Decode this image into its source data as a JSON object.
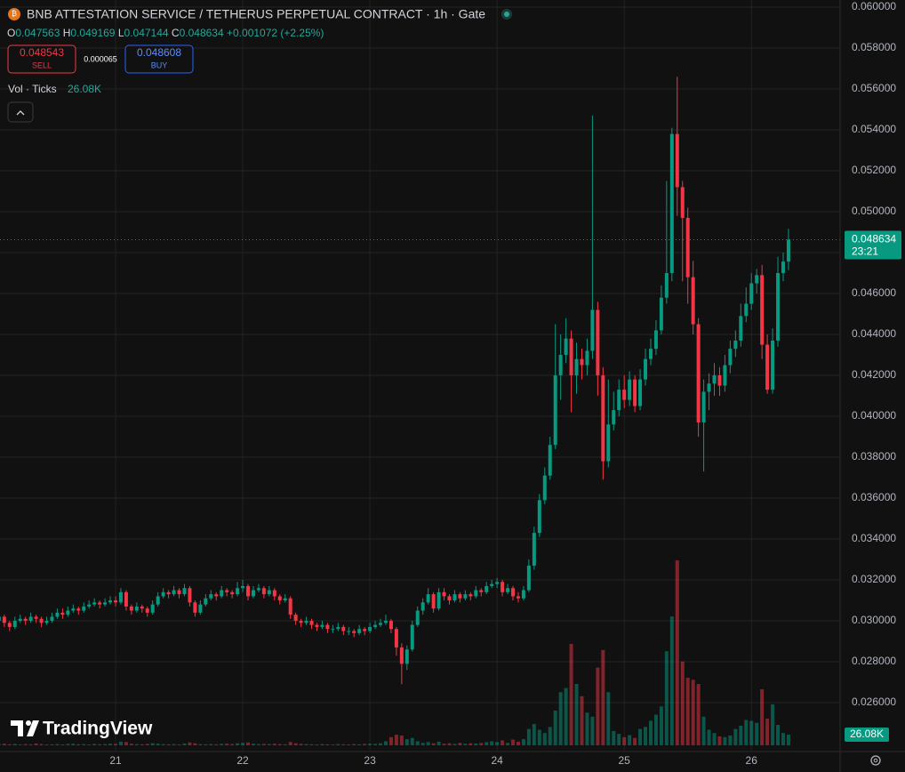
{
  "header": {
    "symbol": "BNB ATTESTATION SERVICE / TETHERUS PERPETUAL CONTRACT · 1h · Gate",
    "ohlc_labels": [
      "O",
      "H",
      "L",
      "C"
    ],
    "change": "+0.001072",
    "change_percent": "(+2.25%)",
    "sell_price": "0.048543",
    "sell_label": "SELL",
    "spread": "0.000065",
    "buy_price": "0.048608",
    "buy_label": "BUY",
    "volume_indicator": "Vol · Ticks",
    "countdown": "23:21",
    "logo": "TradingView"
  },
  "chart_data": {
    "type": "candlestick",
    "up_color": "#089981",
    "down_color": "#f23645",
    "grid": true,
    "ylim": [
      0.02361,
      0.06035
    ],
    "yticks": [
      {
        "value": 0.026,
        "label": "0.026000"
      },
      {
        "value": 0.028,
        "label": "0.028000"
      },
      {
        "value": 0.03,
        "label": "0.030000"
      },
      {
        "value": 0.032,
        "label": "0.032000"
      },
      {
        "value": 0.034,
        "label": "0.034000"
      },
      {
        "value": 0.036,
        "label": "0.036000"
      },
      {
        "value": 0.038,
        "label": "0.038000"
      },
      {
        "value": 0.04,
        "label": "0.040000"
      },
      {
        "value": 0.042,
        "label": "0.042000"
      },
      {
        "value": 0.044,
        "label": "0.044000"
      },
      {
        "value": 0.046,
        "label": "0.046000"
      },
      {
        "value": 0.048,
        "label": "0.048000"
      },
      {
        "value": 0.05,
        "label": "0.050000"
      },
      {
        "value": 0.052,
        "label": "0.052000"
      },
      {
        "value": 0.054,
        "label": "0.054000"
      },
      {
        "value": 0.056,
        "label": "0.056000"
      },
      {
        "value": 0.058,
        "label": "0.058000"
      },
      {
        "value": 0.06,
        "label": "0.060000"
      }
    ],
    "xlim": [
      0.19,
      158.74
    ],
    "xticks": [
      {
        "value": 22,
        "label": "21"
      },
      {
        "value": 46,
        "label": "22"
      },
      {
        "value": 70,
        "label": "23"
      },
      {
        "value": 94,
        "label": "24"
      },
      {
        "value": 118,
        "label": "25"
      },
      {
        "value": 142,
        "label": "26"
      }
    ],
    "volume_ylim": [
      0,
      1800000
    ],
    "last_volume_label": "26.08K",
    "open": [
      0.03,
      0.0302,
      0.0299,
      0.0297,
      0.03,
      0.0301,
      0.03,
      0.0302,
      0.0301,
      0.0299,
      0.03,
      0.0302,
      0.0304,
      0.0303,
      0.0305,
      0.0306,
      0.0305,
      0.0307,
      0.0308,
      0.0309,
      0.0308,
      0.0309,
      0.031,
      0.0309,
      0.0314,
      0.0307,
      0.0305,
      0.0307,
      0.0306,
      0.0304,
      0.0308,
      0.0312,
      0.0314,
      0.0313,
      0.0315,
      0.0313,
      0.0316,
      0.0309,
      0.0304,
      0.0308,
      0.0311,
      0.0313,
      0.0312,
      0.0315,
      0.0314,
      0.0313,
      0.0316,
      0.0317,
      0.0312,
      0.0315,
      0.0316,
      0.0313,
      0.0315,
      0.0312,
      0.031,
      0.0311,
      0.0303,
      0.03,
      0.0299,
      0.03,
      0.0298,
      0.0297,
      0.0298,
      0.0296,
      0.0296,
      0.0297,
      0.0295,
      0.0295,
      0.0294,
      0.0296,
      0.0295,
      0.0297,
      0.0298,
      0.0299,
      0.03,
      0.0296,
      0.0287,
      0.0279,
      0.0286,
      0.0298,
      0.0305,
      0.0309,
      0.0313,
      0.0306,
      0.0314,
      0.0312,
      0.031,
      0.0313,
      0.0311,
      0.0313,
      0.0312,
      0.0315,
      0.0314,
      0.0317,
      0.0318,
      0.0319,
      0.0314,
      0.0316,
      0.0312,
      0.0311,
      0.0315,
      0.0327,
      0.0343,
      0.0359,
      0.0371,
      0.0386,
      0.042,
      0.043,
      0.0438,
      0.042,
      0.0428,
      0.0425,
      0.0432,
      0.0452,
      0.042,
      0.0378,
      0.0396,
      0.0403,
      0.0413,
      0.0408,
      0.0418,
      0.0405,
      0.0418,
      0.0428,
      0.0433,
      0.0442,
      0.0458,
      0.047,
      0.0538,
      0.0512,
      0.0497,
      0.0468,
      0.0445,
      0.0397,
      0.0412,
      0.0416,
      0.042,
      0.0415,
      0.0425,
      0.0433,
      0.0437,
      0.0449,
      0.0455,
      0.0465,
      0.0469,
      0.0435,
      0.0413,
      0.0437,
      0.047,
      0.047563
    ],
    "high": [
      0.0305,
      0.0303,
      0.03,
      0.0302,
      0.0303,
      0.0302,
      0.0304,
      0.0303,
      0.0302,
      0.0302,
      0.0304,
      0.0306,
      0.0306,
      0.0307,
      0.0308,
      0.0307,
      0.0309,
      0.031,
      0.0311,
      0.031,
      0.0311,
      0.0312,
      0.0312,
      0.0316,
      0.0315,
      0.0308,
      0.0309,
      0.0308,
      0.0307,
      0.031,
      0.0314,
      0.0316,
      0.0315,
      0.0317,
      0.0316,
      0.0318,
      0.0317,
      0.031,
      0.031,
      0.0313,
      0.0315,
      0.0314,
      0.0317,
      0.0316,
      0.0315,
      0.0319,
      0.032,
      0.0318,
      0.0317,
      0.0318,
      0.0317,
      0.0317,
      0.0316,
      0.0313,
      0.0313,
      0.0312,
      0.0304,
      0.0301,
      0.0302,
      0.0301,
      0.0299,
      0.03,
      0.0299,
      0.0298,
      0.0299,
      0.0298,
      0.0297,
      0.0296,
      0.0298,
      0.0297,
      0.0299,
      0.03,
      0.0301,
      0.0303,
      0.0301,
      0.0297,
      0.0289,
      0.0288,
      0.03,
      0.0307,
      0.0311,
      0.0316,
      0.0314,
      0.0316,
      0.0316,
      0.0313,
      0.0315,
      0.0314,
      0.0315,
      0.0314,
      0.0317,
      0.0316,
      0.0319,
      0.032,
      0.0321,
      0.032,
      0.0318,
      0.0317,
      0.0314,
      0.0317,
      0.033,
      0.0346,
      0.0362,
      0.0375,
      0.039,
      0.0445,
      0.044,
      0.0448,
      0.0442,
      0.0436,
      0.0433,
      0.0438,
      0.0547,
      0.0456,
      0.0424,
      0.0418,
      0.0412,
      0.0418,
      0.042,
      0.0422,
      0.042,
      0.0423,
      0.0433,
      0.0438,
      0.0447,
      0.0464,
      0.0515,
      0.0541,
      0.0566,
      0.0515,
      0.0502,
      0.0476,
      0.0448,
      0.0418,
      0.0421,
      0.0426,
      0.0424,
      0.043,
      0.0437,
      0.0442,
      0.0455,
      0.0463,
      0.047,
      0.0472,
      0.0474,
      0.044,
      0.0443,
      0.0478,
      0.048,
      0.049169
    ],
    "low": [
      0.0297,
      0.0297,
      0.0295,
      0.0296,
      0.0299,
      0.0298,
      0.0299,
      0.0299,
      0.0297,
      0.0298,
      0.0299,
      0.0301,
      0.0301,
      0.0302,
      0.0304,
      0.0303,
      0.0304,
      0.0306,
      0.0307,
      0.0306,
      0.0307,
      0.0308,
      0.0307,
      0.0308,
      0.0305,
      0.0303,
      0.0304,
      0.0304,
      0.0302,
      0.0303,
      0.0307,
      0.0311,
      0.0311,
      0.0312,
      0.0311,
      0.0312,
      0.0307,
      0.0302,
      0.0303,
      0.0307,
      0.031,
      0.031,
      0.0311,
      0.0312,
      0.0311,
      0.0312,
      0.0314,
      0.031,
      0.0311,
      0.0314,
      0.0311,
      0.0312,
      0.031,
      0.0308,
      0.0309,
      0.0301,
      0.0298,
      0.0297,
      0.0298,
      0.0296,
      0.0295,
      0.0296,
      0.0294,
      0.0294,
      0.0295,
      0.0293,
      0.0293,
      0.0292,
      0.0293,
      0.0293,
      0.0294,
      0.0296,
      0.0297,
      0.0298,
      0.0294,
      0.0283,
      0.0269,
      0.0276,
      0.0285,
      0.0297,
      0.0303,
      0.0308,
      0.0304,
      0.0305,
      0.031,
      0.0308,
      0.0309,
      0.0309,
      0.031,
      0.031,
      0.0311,
      0.0312,
      0.0313,
      0.0316,
      0.0316,
      0.0312,
      0.0313,
      0.031,
      0.0309,
      0.031,
      0.0314,
      0.0325,
      0.0341,
      0.0357,
      0.0369,
      0.0384,
      0.0408,
      0.0426,
      0.0402,
      0.0411,
      0.0418,
      0.042,
      0.0428,
      0.041,
      0.0369,
      0.0375,
      0.0393,
      0.04,
      0.0404,
      0.0405,
      0.0402,
      0.0403,
      0.0415,
      0.0425,
      0.043,
      0.044,
      0.0455,
      0.0466,
      0.0498,
      0.0466,
      0.0455,
      0.044,
      0.039,
      0.0373,
      0.0403,
      0.041,
      0.041,
      0.0412,
      0.0421,
      0.0429,
      0.0434,
      0.0446,
      0.0452,
      0.046,
      0.0428,
      0.0411,
      0.0411,
      0.0434,
      0.0466,
      0.047144
    ],
    "close": [
      0.0302,
      0.0299,
      0.0297,
      0.03,
      0.0301,
      0.03,
      0.0302,
      0.0301,
      0.0299,
      0.03,
      0.0302,
      0.0304,
      0.0303,
      0.0305,
      0.0306,
      0.0305,
      0.0307,
      0.0308,
      0.0309,
      0.0308,
      0.0309,
      0.031,
      0.0309,
      0.0314,
      0.0307,
      0.0305,
      0.0307,
      0.0306,
      0.0304,
      0.0308,
      0.0312,
      0.0314,
      0.0313,
      0.0315,
      0.0313,
      0.0316,
      0.0309,
      0.0304,
      0.0308,
      0.0311,
      0.0313,
      0.0312,
      0.0315,
      0.0314,
      0.0313,
      0.0316,
      0.0317,
      0.0312,
      0.0315,
      0.0316,
      0.0313,
      0.0315,
      0.0312,
      0.031,
      0.0311,
      0.0303,
      0.03,
      0.0299,
      0.03,
      0.0298,
      0.0297,
      0.0298,
      0.0296,
      0.0296,
      0.0297,
      0.0295,
      0.0295,
      0.0294,
      0.0296,
      0.0295,
      0.0297,
      0.0298,
      0.0299,
      0.03,
      0.0296,
      0.0287,
      0.0279,
      0.0286,
      0.0298,
      0.0305,
      0.0309,
      0.0313,
      0.0306,
      0.0314,
      0.0312,
      0.031,
      0.0313,
      0.0311,
      0.0313,
      0.0312,
      0.0315,
      0.0314,
      0.0317,
      0.0318,
      0.0319,
      0.0314,
      0.0316,
      0.0312,
      0.0311,
      0.0315,
      0.0327,
      0.0343,
      0.0359,
      0.0371,
      0.0386,
      0.042,
      0.043,
      0.0438,
      0.042,
      0.0428,
      0.0425,
      0.0432,
      0.0452,
      0.042,
      0.0378,
      0.0396,
      0.0403,
      0.0413,
      0.0408,
      0.0418,
      0.0405,
      0.0418,
      0.0428,
      0.0433,
      0.0442,
      0.0458,
      0.047,
      0.0538,
      0.0512,
      0.0497,
      0.0468,
      0.0445,
      0.0397,
      0.0412,
      0.0416,
      0.042,
      0.0415,
      0.0425,
      0.0433,
      0.0437,
      0.0449,
      0.0455,
      0.0465,
      0.0469,
      0.0435,
      0.0413,
      0.0437,
      0.047,
      0.047563,
      0.048634
    ],
    "volume": [
      3000,
      4000,
      2500,
      3500,
      2000,
      3000,
      2500,
      4500,
      3000,
      2000,
      2500,
      3000,
      2000,
      3500,
      4000,
      2500,
      3000,
      2000,
      3500,
      2500,
      3000,
      4000,
      3500,
      9000,
      8000,
      4000,
      3000,
      2500,
      3500,
      5000,
      4000,
      3000,
      2500,
      3000,
      2000,
      4500,
      7000,
      5000,
      3000,
      2500,
      3000,
      2500,
      3500,
      4000,
      3000,
      5000,
      6000,
      7000,
      4000,
      3000,
      3500,
      3000,
      4000,
      3000,
      2500,
      8000,
      5000,
      3500,
      3000,
      2500,
      2000,
      3000,
      2500,
      2000,
      3000,
      2500,
      2000,
      3000,
      2500,
      3500,
      4000,
      3500,
      5000,
      10000,
      20000,
      26000,
      24000,
      15000,
      18000,
      10000,
      6000,
      8000,
      5000,
      9000,
      4000,
      5000,
      3500,
      6000,
      4000,
      5000,
      4500,
      6000,
      8000,
      10000,
      8000,
      12000,
      6000,
      14000,
      9000,
      15000,
      40000,
      52000,
      38000,
      30000,
      45000,
      85000,
      130000,
      140000,
      248000,
      150000,
      120000,
      80000,
      70000,
      190000,
      233000,
      130000,
      35000,
      28000,
      20000,
      25000,
      18000,
      40000,
      45000,
      60000,
      75000,
      95000,
      230000,
      315000,
      452000,
      205000,
      165000,
      160000,
      150000,
      70000,
      38000,
      30000,
      22000,
      20000,
      24000,
      40000,
      48000,
      62000,
      60000,
      55000,
      137000,
      65000,
      100000,
      50000,
      30000,
      26080
    ]
  }
}
